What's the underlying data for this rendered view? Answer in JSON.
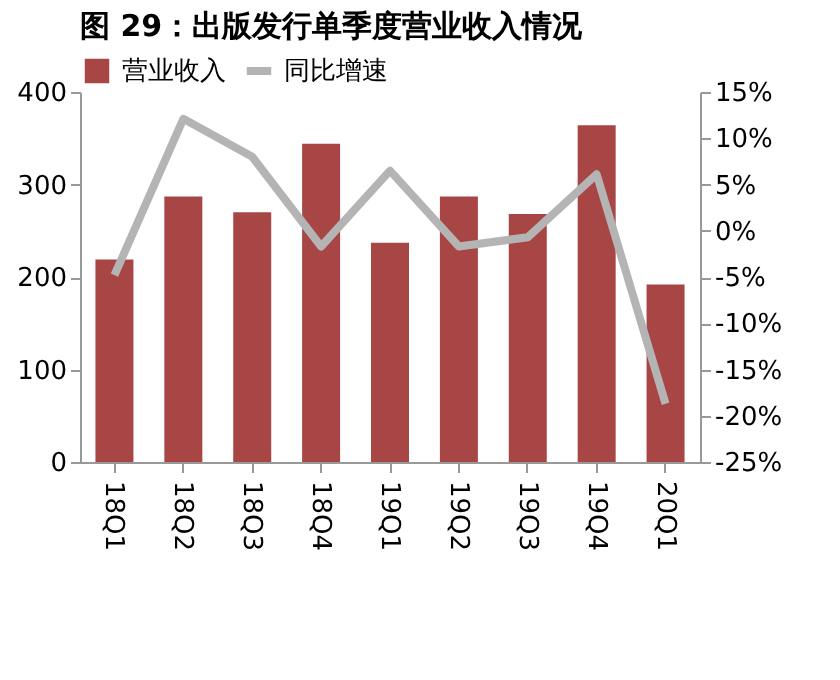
{
  "chart_data": {
    "type": "bar",
    "title": "图 29：出版发行单季度营业收入情况",
    "categories": [
      "18Q1",
      "18Q2",
      "18Q3",
      "18Q4",
      "19Q1",
      "19Q2",
      "19Q3",
      "19Q4",
      "20Q1"
    ],
    "series": [
      {
        "name": "营业收入",
        "color": "#a84646",
        "values": [
          219,
          287,
          270,
          344,
          237,
          287,
          268,
          364,
          192
        ]
      },
      {
        "name": "同比增速",
        "type": "line",
        "axis": "y2",
        "color": "#b4b4b4",
        "values": [
          -4.8,
          12.1,
          8.0,
          -1.7,
          6.5,
          -1.7,
          -0.7,
          6.1,
          -18.7
        ]
      }
    ],
    "ylim": [
      0,
      400
    ],
    "yticks": [
      0,
      100,
      200,
      300,
      400
    ],
    "y2lim": [
      -25,
      15
    ],
    "y2ticks": [
      {
        "value": -25,
        "label": "-25%"
      },
      {
        "value": -20,
        "label": "-20%"
      },
      {
        "value": -15,
        "label": "-15%"
      },
      {
        "value": -10,
        "label": "-10%"
      },
      {
        "value": -5,
        "label": "-5%"
      },
      {
        "value": 0,
        "label": "0%"
      },
      {
        "value": 5,
        "label": "5%"
      },
      {
        "value": 10,
        "label": "10%"
      },
      {
        "value": 15,
        "label": "15%"
      }
    ],
    "legend": "top",
    "grid": false,
    "marker": "none",
    "line_style": "solid"
  }
}
